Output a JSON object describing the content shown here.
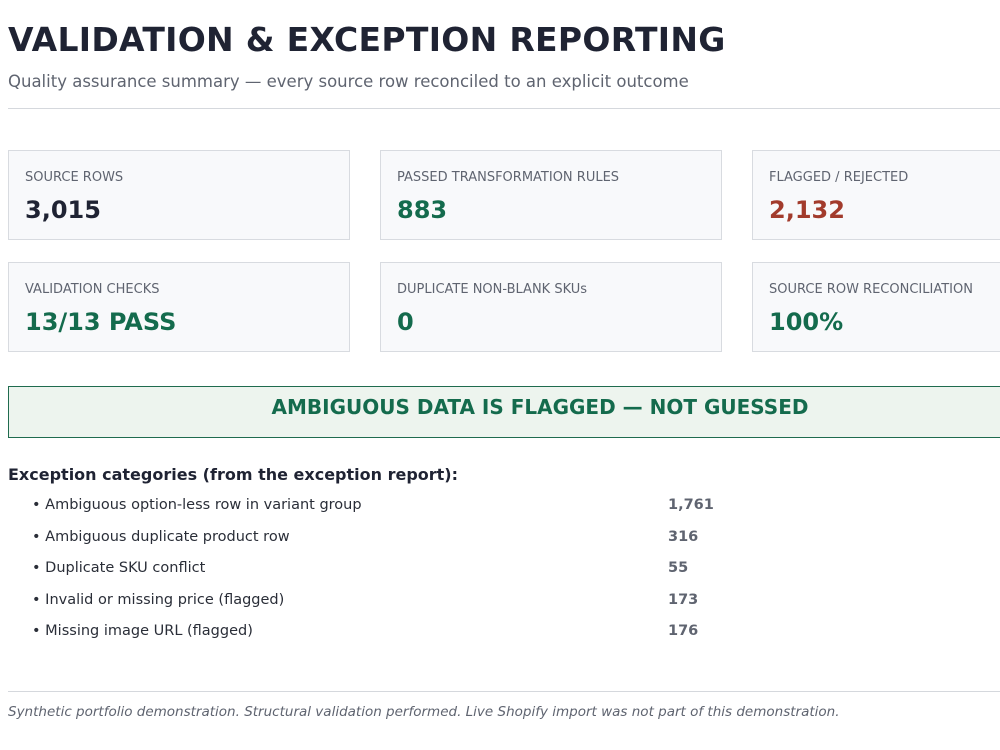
{
  "header": {
    "title": "VALIDATION & EXCEPTION REPORTING",
    "subtitle": "Quality assurance summary — every source row reconciled to an explicit outcome"
  },
  "cards": [
    {
      "label": "SOURCE ROWS",
      "value": "3,015"
    },
    {
      "label": "PASSED TRANSFORMATION RULES",
      "value": "883"
    },
    {
      "label": "FLAGGED / REJECTED",
      "value": "2,132"
    },
    {
      "label": "VALIDATION CHECKS",
      "value": "13/13 PASS"
    },
    {
      "label": "DUPLICATE NON-BLANK SKUs",
      "value": "0"
    },
    {
      "label": "SOURCE ROW RECONCILIATION",
      "value": "100%"
    }
  ],
  "banner": "AMBIGUOUS DATA IS FLAGGED — NOT GUESSED",
  "exceptions": {
    "heading": "Exception categories (from the exception report):",
    "items": [
      {
        "label": "Ambiguous option-less row in variant group",
        "count": "1,761"
      },
      {
        "label": "Ambiguous duplicate product row",
        "count": "316"
      },
      {
        "label": "Duplicate SKU conflict",
        "count": "55"
      },
      {
        "label": "Invalid or missing price (flagged)",
        "count": "173"
      },
      {
        "label": "Missing image URL (flagged)",
        "count": "176"
      }
    ]
  },
  "footer": "Synthetic portfolio demonstration. Structural validation performed. Live Shopify import was not part of this demonstration."
}
